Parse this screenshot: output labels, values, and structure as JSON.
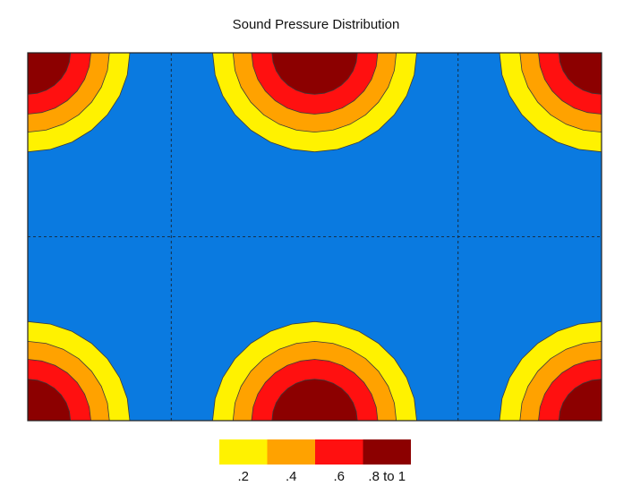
{
  "chart_data": {
    "type": "heatmap",
    "title": "Sound Pressure Distribution",
    "xlabel": "",
    "ylabel": "",
    "grid": true,
    "legend_position": "bottom",
    "background_color": "#0a7ae0",
    "levels": [
      {
        "label": ".2",
        "min": 0.2,
        "max": 0.4,
        "color": "#fff200"
      },
      {
        "label": ".4",
        "min": 0.4,
        "max": 0.6,
        "color": "#ffa200"
      },
      {
        "label": ".6",
        "min": 0.6,
        "max": 0.8,
        "color": "#ff1010"
      },
      {
        "label": ".8 to 1",
        "min": 0.8,
        "max": 1.0,
        "color": "#8c0000"
      }
    ],
    "x": [
      0,
      0.5,
      1,
      1.5,
      2
    ],
    "y": [
      0,
      0.5,
      1
    ],
    "values": [
      [
        1.0,
        0.0,
        1.0,
        0.0,
        1.0
      ],
      [
        0.0,
        0.0,
        0.0,
        0.0,
        0.0
      ],
      [
        1.0,
        0.0,
        1.0,
        0.0,
        1.0
      ]
    ]
  }
}
